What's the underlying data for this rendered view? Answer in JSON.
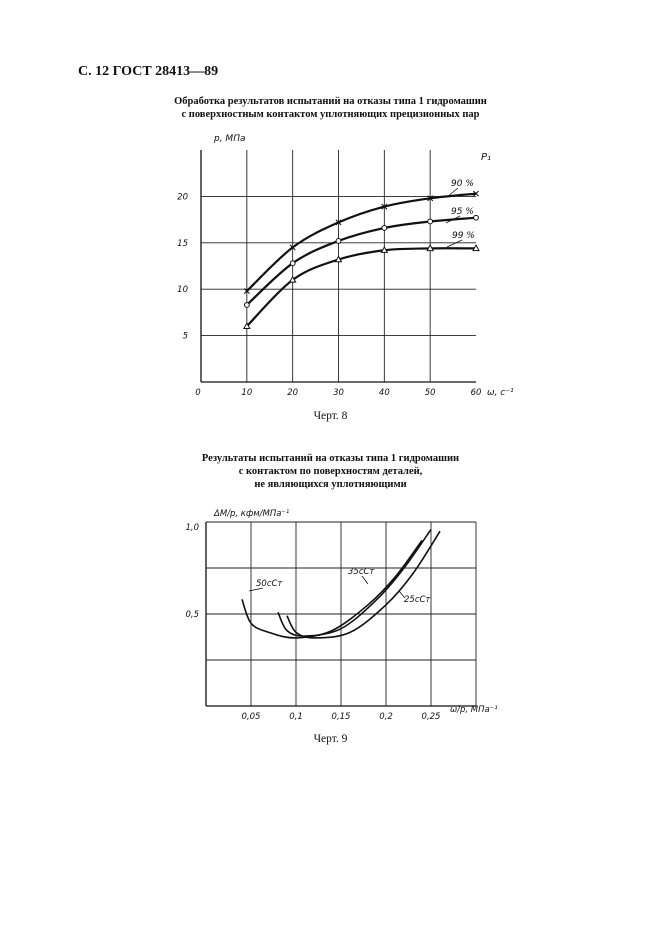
{
  "page_header": "С. 12 ГОСТ 28413—89",
  "figure8": {
    "title_line1": "Обработка результатов испытаний на отказы типа 1 гидромашин",
    "title_line2": "с поверхностным контактом уплотняющих прецизионных пар",
    "caption": "Черт. 8"
  },
  "figure9": {
    "title_line1": "Результаты испытаний на отказы типа 1 гидромашин",
    "title_line2": "с контактом по поверхностям деталей,",
    "title_line3": "не являющихся уплотняющими",
    "caption": "Черт. 9"
  },
  "chart_data": [
    {
      "type": "line",
      "ylabel": "p, МПа",
      "xlabel": "ω, с⁻¹",
      "corner_label": "P₁",
      "x_ticks": [
        "0",
        "10",
        "20",
        "30",
        "40",
        "50",
        "60"
      ],
      "y_ticks": [
        "5",
        "10",
        "15",
        "20"
      ],
      "xlim": [
        0,
        60
      ],
      "ylim": [
        0,
        25
      ],
      "grid": true,
      "series": [
        {
          "name": "90 %",
          "marker": "x",
          "x": [
            10,
            20,
            30,
            40,
            50,
            60
          ],
          "y": [
            9.8,
            14.5,
            17.2,
            18.9,
            19.8,
            20.3
          ]
        },
        {
          "name": "95 %",
          "marker": "o",
          "x": [
            10,
            20,
            30,
            40,
            50,
            60
          ],
          "y": [
            8.3,
            12.8,
            15.2,
            16.6,
            17.3,
            17.7
          ]
        },
        {
          "name": "99 %",
          "marker": "triangle",
          "x": [
            10,
            20,
            30,
            40,
            50,
            60
          ],
          "y": [
            6.0,
            11.0,
            13.2,
            14.2,
            14.4,
            14.4
          ]
        }
      ]
    },
    {
      "type": "line",
      "ylabel": "ΔM/p, кфм/МПа⁻¹",
      "xlabel": "ω/p, МПа⁻¹",
      "x_ticks": [
        "0,05",
        "0,1",
        "0,15",
        "0,2",
        "0,25"
      ],
      "x_tick_values": [
        0.05,
        0.1,
        0.15,
        0.2,
        0.25
      ],
      "y_ticks": [
        "0,5",
        "1,0"
      ],
      "y_tick_values": [
        0.5,
        1.0
      ],
      "xlim": [
        0,
        0.3
      ],
      "ylim": [
        0,
        1.0
      ],
      "grid": true,
      "series": [
        {
          "name": "50сСт",
          "x": [
            0.04,
            0.05,
            0.07,
            0.1,
            0.14,
            0.18,
            0.21,
            0.24
          ],
          "y": [
            0.58,
            0.45,
            0.4,
            0.37,
            0.41,
            0.55,
            0.7,
            0.9
          ]
        },
        {
          "name": "35сСт",
          "x": [
            0.08,
            0.09,
            0.11,
            0.15,
            0.19,
            0.22,
            0.25
          ],
          "y": [
            0.51,
            0.41,
            0.38,
            0.42,
            0.58,
            0.75,
            0.96
          ]
        },
        {
          "name": "25сСт",
          "x": [
            0.09,
            0.1,
            0.12,
            0.16,
            0.2,
            0.23,
            0.26
          ],
          "y": [
            0.49,
            0.4,
            0.37,
            0.4,
            0.55,
            0.72,
            0.95
          ]
        }
      ]
    }
  ]
}
